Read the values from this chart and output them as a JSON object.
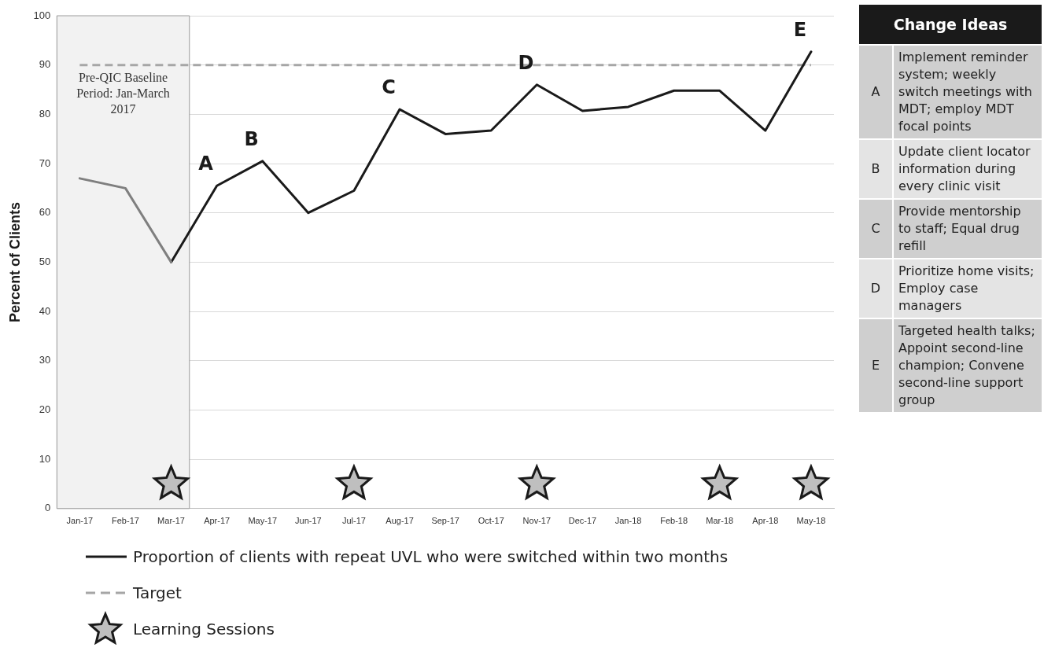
{
  "chart_data": {
    "type": "line",
    "ylabel": "Percent of Clients",
    "categories": [
      "Jan-17",
      "Feb-17",
      "Mar-17",
      "Apr-17",
      "May-17",
      "Jun-17",
      "Jul-17",
      "Aug-17",
      "Sep-17",
      "Oct-17",
      "Nov-17",
      "Dec-17",
      "Jan-18",
      "Feb-18",
      "Mar-18",
      "Apr-18",
      "May-18"
    ],
    "series": [
      {
        "color": "#7f7f7f",
        "values": [
          67,
          65,
          50,
          null,
          null,
          null,
          null,
          null,
          null,
          null,
          null,
          null,
          null,
          null,
          null,
          null,
          null
        ]
      },
      {
        "name": "Proportion of clients with repeat UVL who were switched within two months",
        "color": "#1a1a1a",
        "values": [
          null,
          null,
          50,
          65.5,
          70.5,
          60,
          64.5,
          81,
          76,
          76.7,
          86,
          80.7,
          81.5,
          84.8,
          84.8,
          76.7,
          92.7
        ]
      },
      {
        "name": "Learning Sessions",
        "type": "scatter",
        "marker": "star",
        "color": "#bfbfbf",
        "x": [
          "Mar-17",
          "Jul-17",
          "Nov-17",
          "Mar-18",
          "May-18"
        ],
        "values": [
          5,
          5,
          5,
          5,
          5
        ]
      }
    ],
    "ylim": [
      0,
      100
    ],
    "yticks": [
      0,
      10,
      20,
      30,
      40,
      50,
      60,
      70,
      80,
      90,
      100
    ],
    "grid": "y",
    "legend": "bottom",
    "marker": "none",
    "ref_lines": [
      {
        "axis": "y",
        "value": 90,
        "label": "Target",
        "color": "#a6a6a6",
        "line_style": "dashed"
      }
    ],
    "bands": [
      {
        "axis": "x",
        "from": "Jan-17",
        "to": "Mar-17",
        "label": "Pre-QIC Baseline Period: Jan-March 2017",
        "color": "#f2f2f2"
      }
    ],
    "annotations": [
      {
        "text": "A",
        "x": "Apr-17",
        "y": 65.5
      },
      {
        "text": "B",
        "x": "May-17",
        "y": 70.5
      },
      {
        "text": "C",
        "x": "Aug-17",
        "y": 81
      },
      {
        "text": "D",
        "x": "Nov-17",
        "y": 86
      },
      {
        "text": "E",
        "x": "May-18",
        "y": 92.7
      },
      "Change Ideas",
      "A",
      "Implement reminder system; weekly switch meetings with MDT; employ MDT focal points",
      "B",
      "Update client locator information during every clinic visit",
      "C",
      "Provide mentorship to staff; Equal drug refill",
      "D",
      "Prioritize home visits; Employ case managers",
      "E",
      "Targeted health talks; Appoint second-line champion; Convene second-line support group"
    ]
  }
}
